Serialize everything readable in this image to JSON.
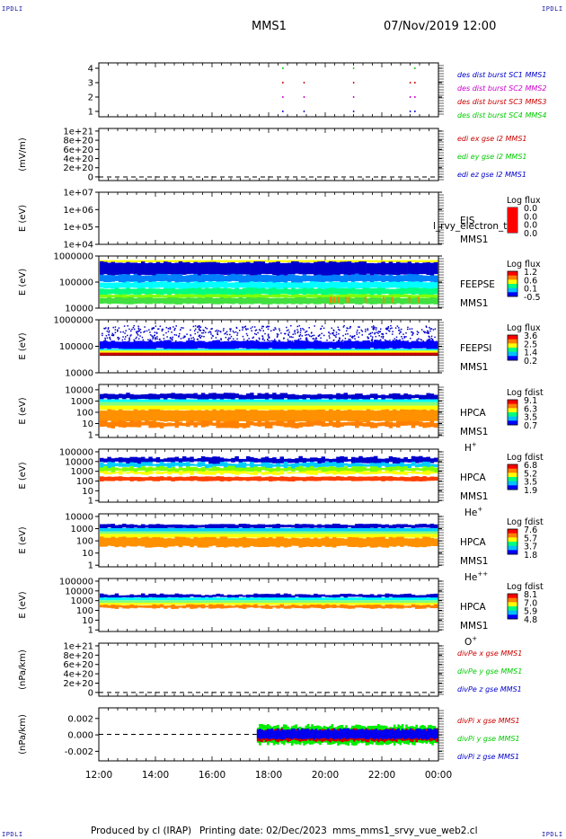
{
  "corner_label": "IPDLI",
  "header": {
    "spacecraft": "MMS1",
    "datetime": "07/Nov/2019 12:00"
  },
  "footer": {
    "produced_by": "Produced by cl (IRAP)",
    "printing_date": "Printing date: 02/Dec/2023",
    "script_name": "mms_mms1_srvy_vue_web2.cl"
  },
  "colors": {
    "ion_blue": "#0000cc",
    "magenta": "#cc00cc",
    "red": "#cc0000",
    "green": "#00cc00"
  },
  "chart_data": [
    {
      "type": "scatter",
      "panel": "des_dist_burst",
      "xlabel": "",
      "ylabel": "",
      "yticks": [
        "4",
        "3",
        "2",
        "1"
      ],
      "legend": [
        {
          "name": "des dist burst SC1 MMS1",
          "color": "#0000cc"
        },
        {
          "name": "des dist burst SC2 MMS2",
          "color": "#cc00cc"
        },
        {
          "name": "des dist burst SC3 MMS3",
          "color": "#cc0000"
        },
        {
          "name": "des dist burst SC4 MMS4",
          "color": "#00cc00"
        }
      ],
      "x": [
        "18:30",
        "19:15",
        "21:00",
        "23:00",
        "23:10"
      ],
      "series": [
        {
          "level": 4,
          "x": [
            "18:30",
            "21:00",
            "23:10"
          ]
        },
        {
          "level": 3,
          "x": [
            "18:30",
            "19:15",
            "21:00",
            "23:00",
            "23:10"
          ]
        },
        {
          "level": 2,
          "x": [
            "18:30",
            "19:15",
            "21:00",
            "23:00",
            "23:10"
          ]
        },
        {
          "level": 1,
          "x": [
            "18:30",
            "19:15",
            "21:00",
            "23:00",
            "23:10"
          ]
        }
      ]
    },
    {
      "type": "line",
      "panel": "edi_e",
      "ylabel": "(mV/m)",
      "yticks": [
        "1e+21",
        "8e+20",
        "6e+20",
        "4e+20",
        "2e+20",
        "0"
      ],
      "legend": [
        {
          "name": "edi ex gse l2 MMS1",
          "color": "#cc0000"
        },
        {
          "name": "edi ey gse l2 MMS1",
          "color": "#00cc00"
        },
        {
          "name": "edi ez gse l2 MMS1",
          "color": "#0000cc"
        }
      ]
    },
    {
      "type": "heatmap",
      "panel": "eis",
      "ylabel": "E (eV)",
      "yticks": [
        "1e+07",
        "1e+06",
        "1e+05",
        "1e+04"
      ],
      "instrument": "EIS",
      "extra_label": "l_rvy_electron_t",
      "sc": "MMS1",
      "colorbar": {
        "title": "Log flux",
        "ticks": [
          "0.0",
          "0.0",
          "0.0",
          "0.0"
        ]
      }
    },
    {
      "type": "heatmap",
      "panel": "feepse",
      "ylabel": "E (eV)",
      "yticks": [
        "1000000",
        "100000",
        "10000"
      ],
      "instrument": "FEEPSE",
      "sc": "MMS1",
      "colorbar": {
        "title": "Log flux",
        "ticks": [
          "1.2",
          "0.6",
          "0.1",
          "-0.5"
        ]
      }
    },
    {
      "type": "heatmap",
      "panel": "feepsi",
      "ylabel": "E (eV)",
      "yticks": [
        "1000000",
        "100000",
        "10000"
      ],
      "instrument": "FEEPSI",
      "sc": "MMS1",
      "colorbar": {
        "title": "Log flux",
        "ticks": [
          "3.6",
          "2.5",
          "1.4",
          "0.2"
        ]
      }
    },
    {
      "type": "heatmap",
      "panel": "hpca_h",
      "ylabel": "E (eV)",
      "yticks": [
        "10000",
        "1000",
        "100",
        "10",
        "1"
      ],
      "instrument": "HPCA",
      "sc": "MMS1",
      "species": "H",
      "charge": "+",
      "colorbar": {
        "title": "Log fdist",
        "ticks": [
          "9.1",
          "6.3",
          "3.5",
          "0.7"
        ]
      }
    },
    {
      "type": "heatmap",
      "panel": "hpca_he",
      "ylabel": "E (eV)",
      "yticks": [
        "100000",
        "10000",
        "1000",
        "100",
        "10",
        "1"
      ],
      "instrument": "HPCA",
      "sc": "MMS1",
      "species": "He",
      "charge": "+",
      "colorbar": {
        "title": "Log fdist",
        "ticks": [
          "6.8",
          "5.2",
          "3.5",
          "1.9"
        ]
      }
    },
    {
      "type": "heatmap",
      "panel": "hpca_hepp",
      "ylabel": "E (eV)",
      "yticks": [
        "10000",
        "1000",
        "100",
        "10",
        "1"
      ],
      "instrument": "HPCA",
      "sc": "MMS1",
      "species": "He",
      "charge": "++",
      "colorbar": {
        "title": "Log fdist",
        "ticks": [
          "7.6",
          "5.7",
          "3.7",
          "1.8"
        ]
      }
    },
    {
      "type": "heatmap",
      "panel": "hpca_o",
      "ylabel": "E (eV)",
      "yticks": [
        "100000",
        "10000",
        "1000",
        "100",
        "10",
        "1"
      ],
      "instrument": "HPCA",
      "sc": "MMS1",
      "species": "O",
      "charge": "+",
      "colorbar": {
        "title": "Log fdist",
        "ticks": [
          "8.1",
          "7.0",
          "5.9",
          "4.8"
        ]
      }
    },
    {
      "type": "line",
      "panel": "divpe",
      "ylabel": "(nPa/km)",
      "yticks": [
        "1e+21",
        "8e+20",
        "6e+20",
        "4e+20",
        "2e+20",
        "0"
      ],
      "legend": [
        {
          "name": "divPe x gse MMS1",
          "color": "#cc0000"
        },
        {
          "name": "divPe y gse MMS1",
          "color": "#00cc00"
        },
        {
          "name": "divPe z gse MMS1",
          "color": "#0000cc"
        }
      ]
    },
    {
      "type": "line",
      "panel": "divpi",
      "ylabel": "(nPa/km)",
      "yticks": [
        "0.002",
        "0.000",
        "-0.002"
      ],
      "legend": [
        {
          "name": "divPi x gse MMS1",
          "color": "#cc0000"
        },
        {
          "name": "divPi y gse MMS1",
          "color": "#00cc00"
        },
        {
          "name": "divPi z gse MMS1",
          "color": "#0000cc"
        }
      ],
      "data_start": "17:35",
      "ylim": [
        -0.003,
        0.003
      ]
    }
  ],
  "xaxis": {
    "ticks": [
      "12:00",
      "14:00",
      "16:00",
      "18:00",
      "20:00",
      "22:00",
      "00:00"
    ]
  }
}
